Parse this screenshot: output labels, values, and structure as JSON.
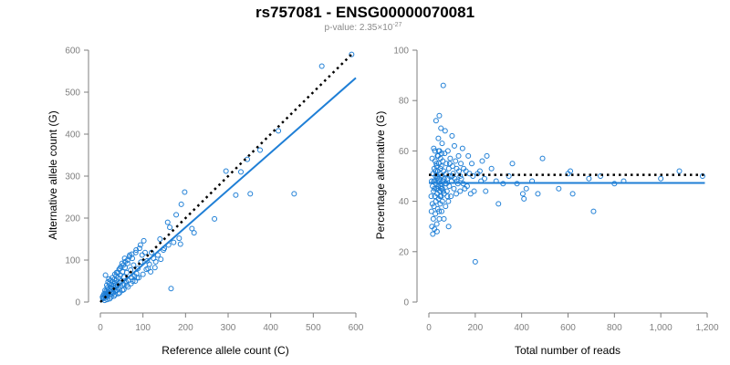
{
  "title": "rs757081 - ENSG00000070081",
  "subtitle": {
    "prefix": "p-value: 2.35×10",
    "exponent": "-27"
  },
  "colors": {
    "points": "#1f7fd6",
    "fit": "#1f7fd6",
    "reference": "#000000",
    "axis": "#7f7f7f"
  },
  "chart_data": [
    {
      "type": "scatter",
      "xlabel": "Reference allele count (C)",
      "ylabel": "Alternative allele count (G)",
      "xlim": [
        0,
        600
      ],
      "ylim": [
        0,
        600
      ],
      "xticks": [
        0,
        100,
        200,
        300,
        400,
        500,
        600
      ],
      "xtick_labels": [
        "0",
        "100",
        "200",
        "300",
        "400",
        "500",
        "600"
      ],
      "yticks": [
        0,
        100,
        200,
        300,
        400,
        500,
        600
      ],
      "ytick_labels": [
        "0",
        "100",
        "200",
        "300",
        "400",
        "500",
        "600"
      ],
      "grid": false,
      "reference_line": {
        "style": "dotted",
        "color": "#000000",
        "from": [
          0,
          0
        ],
        "to": [
          590,
          590
        ]
      },
      "fit_line": {
        "style": "solid",
        "color": "#1f7fd6",
        "from": [
          0,
          0
        ],
        "to": [
          600,
          534
        ]
      },
      "points": [
        [
          590,
          590
        ],
        [
          520,
          562
        ],
        [
          418,
          408
        ],
        [
          375,
          362
        ],
        [
          345,
          340
        ],
        [
          330,
          310
        ],
        [
          295,
          312
        ],
        [
          352,
          258
        ],
        [
          455,
          258
        ],
        [
          318,
          255
        ],
        [
          268,
          198
        ],
        [
          215,
          175
        ],
        [
          220,
          165
        ],
        [
          198,
          262
        ],
        [
          190,
          233
        ],
        [
          178,
          208
        ],
        [
          185,
          152
        ],
        [
          188,
          138
        ],
        [
          172,
          142
        ],
        [
          163,
          178
        ],
        [
          158,
          190
        ],
        [
          166,
          32
        ],
        [
          142,
          102
        ],
        [
          128,
          82
        ],
        [
          120,
          118
        ],
        [
          118,
          72
        ],
        [
          110,
          98
        ],
        [
          105,
          118
        ],
        [
          102,
          146
        ],
        [
          98,
          112
        ],
        [
          95,
          95
        ],
        [
          92,
          128
        ],
        [
          88,
          80
        ],
        [
          85,
          68
        ],
        [
          83,
          118
        ],
        [
          80,
          62
        ],
        [
          78,
          88
        ],
        [
          75,
          104
        ],
        [
          73,
          58
        ],
        [
          71,
          76
        ],
        [
          69,
          112
        ],
        [
          66,
          52
        ],
        [
          64,
          92
        ],
        [
          62,
          70
        ],
        [
          60,
          48
        ],
        [
          58,
          82
        ],
        [
          57,
          104
        ],
        [
          55,
          60
        ],
        [
          54,
          42
        ],
        [
          52,
          72
        ],
        [
          51,
          92
        ],
        [
          49,
          50
        ],
        [
          48,
          38
        ],
        [
          47,
          64
        ],
        [
          46,
          80
        ],
        [
          44,
          46
        ],
        [
          43,
          34
        ],
        [
          42,
          58
        ],
        [
          41,
          70
        ],
        [
          40,
          40
        ],
        [
          39,
          28
        ],
        [
          38,
          52
        ],
        [
          37,
          62
        ],
        [
          36,
          36
        ],
        [
          35,
          26
        ],
        [
          34,
          46
        ],
        [
          33,
          54
        ],
        [
          32,
          30
        ],
        [
          31,
          40
        ],
        [
          30,
          22
        ],
        [
          29,
          48
        ],
        [
          28,
          34
        ],
        [
          27,
          24
        ],
        [
          26,
          42
        ],
        [
          25,
          30
        ],
        [
          24,
          18
        ],
        [
          23,
          36
        ],
        [
          22,
          26
        ],
        [
          21,
          44
        ],
        [
          20,
          20
        ],
        [
          19,
          30
        ],
        [
          18,
          14
        ],
        [
          17,
          24
        ],
        [
          16,
          34
        ],
        [
          15,
          18
        ],
        [
          14,
          26
        ],
        [
          13,
          12
        ],
        [
          12,
          20
        ],
        [
          11,
          28
        ],
        [
          10,
          14
        ],
        [
          9,
          20
        ],
        [
          8,
          10
        ],
        [
          7,
          16
        ],
        [
          6,
          8
        ],
        [
          5,
          12
        ],
        [
          12,
          64
        ],
        [
          20,
          55
        ],
        [
          15,
          40
        ],
        [
          25,
          12
        ],
        [
          35,
          18
        ],
        [
          45,
          22
        ],
        [
          55,
          30
        ],
        [
          65,
          36
        ],
        [
          72,
          44
        ],
        [
          82,
          50
        ],
        [
          90,
          58
        ],
        [
          100,
          66
        ],
        [
          108,
          78
        ],
        [
          115,
          90
        ],
        [
          125,
          104
        ],
        [
          135,
          112
        ],
        [
          148,
          124
        ],
        [
          160,
          136
        ],
        [
          18,
          48
        ],
        [
          28,
          58
        ],
        [
          38,
          70
        ],
        [
          48,
          84
        ],
        [
          58,
          96
        ],
        [
          68,
          108
        ],
        [
          140,
          150
        ],
        [
          150,
          128
        ],
        [
          62,
          40
        ],
        [
          52,
          28
        ],
        [
          42,
          20
        ],
        [
          32,
          14
        ],
        [
          22,
          8
        ],
        [
          16,
          6
        ],
        [
          10,
          4
        ],
        [
          24,
          52
        ],
        [
          34,
          66
        ],
        [
          44,
          78
        ],
        [
          54,
          88
        ],
        [
          64,
          100
        ],
        [
          74,
          114
        ],
        [
          84,
          124
        ],
        [
          94,
          136
        ],
        [
          112,
          80
        ],
        [
          130,
          96
        ],
        [
          86,
          58
        ],
        [
          76,
          50
        ]
      ]
    },
    {
      "type": "scatter",
      "xlabel": "Total number of reads",
      "ylabel": "Percentage alternative (G)",
      "xlim": [
        0,
        1200
      ],
      "ylim": [
        0,
        100
      ],
      "xticks": [
        0,
        200,
        400,
        600,
        800,
        1000,
        1200
      ],
      "xtick_labels": [
        "0",
        "200",
        "400",
        "600",
        "800",
        "1,000",
        "1,200"
      ],
      "yticks": [
        0,
        20,
        40,
        60,
        80,
        100
      ],
      "ytick_labels": [
        "0",
        "20",
        "40",
        "60",
        "80",
        "100"
      ],
      "grid": false,
      "reference_line": {
        "style": "dotted",
        "color": "#000000",
        "y": 50.5,
        "from_x": 0,
        "to_x": 1190
      },
      "fit_line": {
        "style": "solid",
        "color": "#1f7fd6",
        "y": 47.3,
        "from_x": 0,
        "to_x": 1190
      },
      "points": [
        [
          1180,
          50
        ],
        [
          1080,
          52
        ],
        [
          1000,
          49
        ],
        [
          840,
          48
        ],
        [
          800,
          47
        ],
        [
          740,
          50
        ],
        [
          710,
          36
        ],
        [
          690,
          49
        ],
        [
          620,
          43
        ],
        [
          610,
          52
        ],
        [
          600,
          51
        ],
        [
          560,
          45
        ],
        [
          490,
          57
        ],
        [
          470,
          43
        ],
        [
          445,
          48
        ],
        [
          420,
          45
        ],
        [
          410,
          41
        ],
        [
          405,
          43
        ],
        [
          380,
          47
        ],
        [
          360,
          55
        ],
        [
          345,
          50
        ],
        [
          320,
          47
        ],
        [
          300,
          39
        ],
        [
          290,
          48
        ],
        [
          270,
          53
        ],
        [
          250,
          58
        ],
        [
          245,
          44
        ],
        [
          240,
          49
        ],
        [
          230,
          56
        ],
        [
          225,
          48
        ],
        [
          220,
          52
        ],
        [
          210,
          51
        ],
        [
          200,
          16
        ],
        [
          195,
          44
        ],
        [
          190,
          50
        ],
        [
          185,
          55
        ],
        [
          180,
          43
        ],
        [
          175,
          51
        ],
        [
          170,
          58
        ],
        [
          165,
          46
        ],
        [
          160,
          52
        ],
        [
          155,
          45
        ],
        [
          150,
          53
        ],
        [
          148,
          47
        ],
        [
          145,
          61
        ],
        [
          140,
          49
        ],
        [
          138,
          55
        ],
        [
          135,
          44
        ],
        [
          130,
          52
        ],
        [
          128,
          58
        ],
        [
          125,
          47
        ],
        [
          120,
          53
        ],
        [
          118,
          43
        ],
        [
          115,
          56
        ],
        [
          112,
          49
        ],
        [
          110,
          62
        ],
        [
          108,
          45
        ],
        [
          105,
          51
        ],
        [
          102,
          54
        ],
        [
          100,
          66
        ],
        [
          98,
          48
        ],
        [
          95,
          42
        ],
        [
          92,
          57
        ],
        [
          90,
          50
        ],
        [
          88,
          46
        ],
        [
          86,
          53
        ],
        [
          84,
          40
        ],
        [
          82,
          60
        ],
        [
          80,
          49
        ],
        [
          78,
          44
        ],
        [
          76,
          55
        ],
        [
          74,
          51
        ],
        [
          72,
          38
        ],
        [
          70,
          47
        ],
        [
          68,
          59
        ],
        [
          66,
          43
        ],
        [
          64,
          52
        ],
        [
          62,
          86
        ],
        [
          60,
          48
        ],
        [
          58,
          45
        ],
        [
          57,
          63
        ],
        [
          56,
          50
        ],
        [
          55,
          36
        ],
        [
          54,
          54
        ],
        [
          53,
          42
        ],
        [
          52,
          69
        ],
        [
          51,
          47
        ],
        [
          50,
          57
        ],
        [
          49,
          39
        ],
        [
          48,
          51
        ],
        [
          47,
          44
        ],
        [
          46,
          60
        ],
        [
          45,
          33
        ],
        [
          44,
          49
        ],
        [
          43,
          55
        ],
        [
          42,
          41
        ],
        [
          41,
          65
        ],
        [
          40,
          46
        ],
        [
          39,
          52
        ],
        [
          38,
          37
        ],
        [
          37,
          58
        ],
        [
          36,
          43
        ],
        [
          35,
          49
        ],
        [
          34,
          31
        ],
        [
          33,
          54
        ],
        [
          32,
          45
        ],
        [
          31,
          72
        ],
        [
          30,
          40
        ],
        [
          29,
          50
        ],
        [
          28,
          35
        ],
        [
          27,
          56
        ],
        [
          26,
          42
        ],
        [
          25,
          48
        ],
        [
          24,
          29
        ],
        [
          23,
          53
        ],
        [
          22,
          38
        ],
        [
          21,
          61
        ],
        [
          20,
          44
        ],
        [
          19,
          33
        ],
        [
          18,
          51
        ],
        [
          17,
          27
        ],
        [
          16,
          46
        ],
        [
          15,
          39
        ],
        [
          14,
          57
        ],
        [
          13,
          30
        ],
        [
          12,
          48
        ],
        [
          11,
          36
        ],
        [
          10,
          42
        ],
        [
          45,
          74
        ],
        [
          70,
          68
        ],
        [
          35,
          28
        ],
        [
          65,
          33
        ],
        [
          85,
          30
        ],
        [
          55,
          59
        ],
        [
          42,
          60
        ],
        [
          38,
          45
        ],
        [
          48,
          42
        ],
        [
          52,
          46
        ],
        [
          58,
          40
        ],
        [
          62,
          44
        ],
        [
          75,
          47
        ],
        [
          80,
          42
        ],
        [
          90,
          55
        ],
        [
          100,
          50
        ],
        [
          120,
          48
        ],
        [
          135,
          50
        ],
        [
          30,
          47
        ],
        [
          28,
          52
        ],
        [
          26,
          60
        ],
        [
          24,
          45
        ],
        [
          22,
          48
        ],
        [
          32,
          55
        ],
        [
          36,
          50
        ],
        [
          40,
          58
        ],
        [
          44,
          36
        ],
        [
          46,
          48
        ],
        [
          50,
          53
        ],
        [
          54,
          45
        ],
        [
          60,
          56
        ],
        [
          66,
          49
        ]
      ]
    }
  ]
}
